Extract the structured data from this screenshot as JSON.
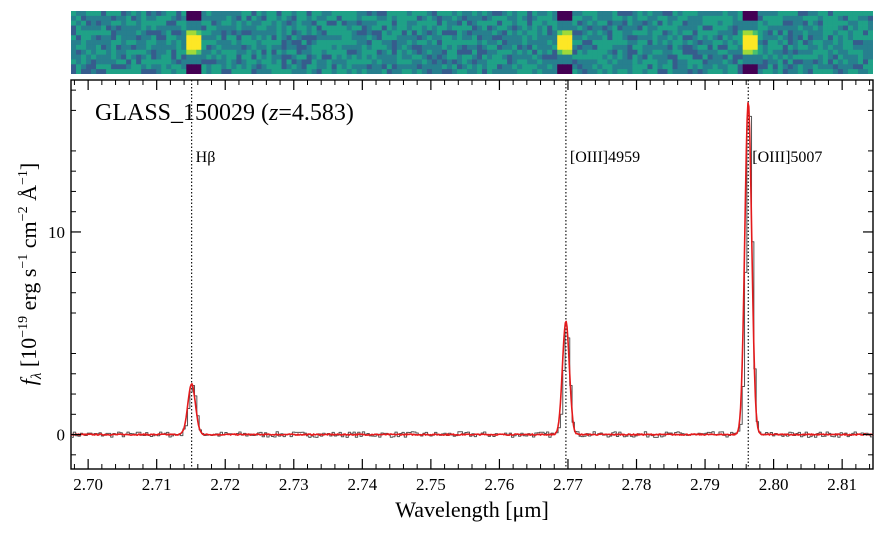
{
  "chart_data": {
    "type": "line",
    "title": "GLASS_150029 (",
    "title_z_symbol": "z",
    "title_z_value": "=4.583)",
    "xlabel": "Wavelength [μm]",
    "ylabel": "f_λ [10^-19 erg s^-1 cm^-2 Å^-1]",
    "xlim": [
      2.6975,
      2.8145
    ],
    "ylim": [
      -1.7,
      17.5
    ],
    "x_ticks": [
      2.7,
      2.71,
      2.72,
      2.73,
      2.74,
      2.75,
      2.76,
      2.77,
      2.78,
      2.79,
      2.8,
      2.81
    ],
    "x_tick_labels": [
      "2.70",
      "2.71",
      "2.72",
      "2.73",
      "2.74",
      "2.75",
      "2.76",
      "2.77",
      "2.78",
      "2.79",
      "2.80",
      "2.81"
    ],
    "y_ticks": [
      0,
      10
    ],
    "y_tick_labels": [
      "0",
      "10"
    ],
    "emission_lines": [
      {
        "label": "Hβ",
        "x": 2.7151
      },
      {
        "label": "[OIII]4959",
        "x": 2.7697
      },
      {
        "label": "[OIII]5007",
        "x": 2.7963
      }
    ],
    "series": [
      {
        "color": "#555555",
        "style": "step",
        "peaks": [
          {
            "x": 2.7151,
            "amp": 2.4,
            "sigma": 0.00055
          },
          {
            "x": 2.7697,
            "amp": 5.5,
            "sigma": 0.00045
          },
          {
            "x": 2.7963,
            "amp": 16.6,
            "sigma": 0.00045
          }
        ]
      },
      {
        "color": "#e41a1c",
        "style": "smooth",
        "peaks": [
          {
            "x": 2.7151,
            "amp": 2.5,
            "sigma": 0.00055
          },
          {
            "x": 2.7697,
            "amp": 5.6,
            "sigma": 0.0005
          },
          {
            "x": 2.7963,
            "amp": 16.4,
            "sigma": 0.0005
          }
        ]
      }
    ],
    "grid": false,
    "spectrum_2d": {
      "colormap": "viridis",
      "bright_spots": [
        2.7151,
        2.7697,
        2.7963
      ]
    }
  }
}
